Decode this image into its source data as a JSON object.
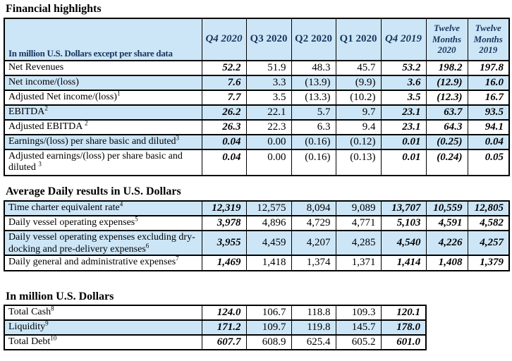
{
  "colors": {
    "row_shade": "#cde6f7",
    "header_text": "#17365d",
    "border": "#000000",
    "background": "#ffffff"
  },
  "tables": {
    "t1": {
      "title": "Financial highlights",
      "header_label": "In million U.S. Dollars except per share data",
      "columns": [
        "Q4 2020",
        "Q3 2020",
        "Q2 2020",
        "Q1 2020",
        "Q4 2019",
        "Twelve Months 2020",
        "Twelve Months 2019"
      ],
      "rows": [
        {
          "label": "Net Revenues",
          "sup": "",
          "values": [
            "52.2",
            "51.9",
            "48.3",
            "45.7",
            "53.2",
            "198.2",
            "197.8"
          ]
        },
        {
          "label": "Net income/(loss)",
          "sup": "",
          "values": [
            "7.6",
            "3.3",
            "(13.9)",
            "(9.9)",
            "3.6",
            "(12.9)",
            "16.0"
          ]
        },
        {
          "label": "Adjusted Net income/(loss)",
          "sup": "1",
          "values": [
            "7.7",
            "3.5",
            "(13.3)",
            "(10.2)",
            "3.5",
            "(12.3)",
            "16.7"
          ]
        },
        {
          "label": "EBITDA",
          "sup": "2",
          "values": [
            "26.2",
            "22.1",
            "5.7",
            "9.7",
            "23.1",
            "63.7",
            "93.5"
          ]
        },
        {
          "label": "Adjusted EBITDA ",
          "sup": "2",
          "values": [
            "26.3",
            "22.3",
            "6.3",
            "9.4",
            "23.1",
            "64.3",
            "94.1"
          ]
        },
        {
          "label": "Earnings/(loss) per share basic and diluted",
          "sup": "3",
          "values": [
            "0.04",
            "0.00",
            "(0.16)",
            "(0.12)",
            "0.01",
            "(0.25)",
            "0.04"
          ]
        },
        {
          "label": "Adjusted earnings/(loss) per share basic and diluted ",
          "sup": "3",
          "vtop": true,
          "values": [
            "0.04",
            "0.00",
            "(0.16)",
            "(0.13)",
            "0.01",
            "(0.24)",
            "0.05"
          ]
        }
      ]
    },
    "t2": {
      "title": "Average Daily results in U.S. Dollars",
      "rows": [
        {
          "label": "Time charter equivalent rate",
          "sup": "4",
          "values": [
            "12,319",
            "12,575",
            "8,094",
            "9,089",
            "13,707",
            "10,559",
            "12,805"
          ]
        },
        {
          "label": "Daily vessel operating expenses",
          "sup": "5",
          "values": [
            "3,978",
            "4,896",
            "4,729",
            "4,771",
            "5,103",
            "4,591",
            "4,582"
          ]
        },
        {
          "label": "Daily vessel operating expenses excluding dry-docking and pre-delivery expenses",
          "sup": "6",
          "clip": true,
          "values": [
            "3,955",
            "4,459",
            "4,207",
            "4,285",
            "4,540",
            "4,226",
            "4,257"
          ]
        },
        {
          "label": "Daily general and administrative expenses",
          "sup": "7",
          "values": [
            "1,469",
            "1,418",
            "1,374",
            "1,371",
            "1,414",
            "1,408",
            "1,379"
          ]
        }
      ]
    },
    "t3": {
      "title": "In million U.S. Dollars",
      "rows": [
        {
          "label": "Total Cash",
          "sup": "8",
          "values": [
            "124.0",
            "106.7",
            "118.8",
            "109.3",
            "120.1"
          ]
        },
        {
          "label": "Liquidity",
          "sup": "9",
          "values": [
            "171.2",
            "109.7",
            "119.8",
            "145.7",
            "178.0"
          ]
        },
        {
          "label": "Total Debt",
          "sup": "10",
          "values": [
            "607.7",
            "608.9",
            "625.4",
            "605.2",
            "601.0"
          ]
        }
      ]
    }
  }
}
